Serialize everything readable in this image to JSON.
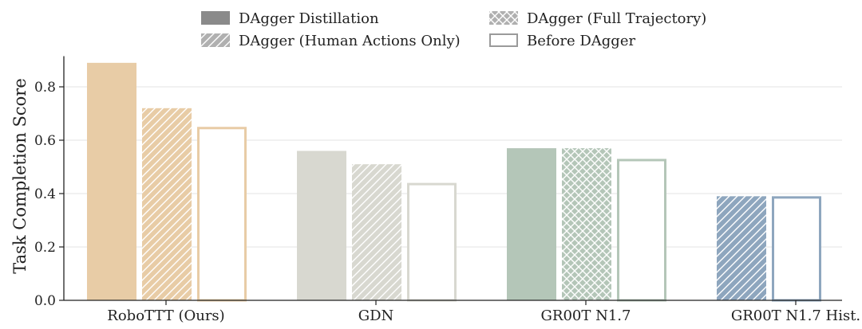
{
  "chart_data": {
    "type": "bar",
    "title": "",
    "xlabel": "",
    "ylabel": "Task Completion Score",
    "ylim": [
      0,
      0.9
    ],
    "yticks": [
      0.0,
      0.2,
      0.4,
      0.6,
      0.8
    ],
    "ytick_labels": [
      "0.0",
      "0.2",
      "0.4",
      "0.6",
      "0.8"
    ],
    "grid": "horizontal",
    "legend_position": "top-center",
    "legend": [
      {
        "key": "distill",
        "label": "DAgger Distillation",
        "style": "solid"
      },
      {
        "key": "full",
        "label": "DAgger (Full Trajectory)",
        "style": "crosshatch"
      },
      {
        "key": "human",
        "label": "DAgger (Human Actions Only)",
        "style": "diagonal"
      },
      {
        "key": "before",
        "label": "Before DAgger",
        "style": "outline"
      }
    ],
    "groups": [
      {
        "category": "RoboTTT (Ours)",
        "color": "#e8cca6",
        "bars": [
          {
            "series": "distill",
            "value": 0.89
          },
          {
            "series": "human",
            "value": 0.72
          },
          {
            "series": "before",
            "value": 0.65
          }
        ]
      },
      {
        "category": "GDN",
        "color": "#d8d8d0",
        "bars": [
          {
            "series": "distill",
            "value": 0.56
          },
          {
            "series": "human",
            "value": 0.51
          },
          {
            "series": "before",
            "value": 0.44
          }
        ]
      },
      {
        "category": "GR00T N1.7",
        "color": "#b4c6b8",
        "bars": [
          {
            "series": "distill",
            "value": 0.57
          },
          {
            "series": "full",
            "value": 0.57
          },
          {
            "series": "before",
            "value": 0.53
          }
        ]
      },
      {
        "category": "GR00T N1.7 Hist.",
        "color": "#8ea6be",
        "bars": [
          {
            "series": "human",
            "value": 0.39
          },
          {
            "series": "before",
            "value": 0.39
          }
        ]
      }
    ]
  },
  "colors": {
    "legend_swatch": "#8a8a8a",
    "legend_outline": "#9a9a9a",
    "grid": "#e3e3e3",
    "axis": "#222222"
  }
}
